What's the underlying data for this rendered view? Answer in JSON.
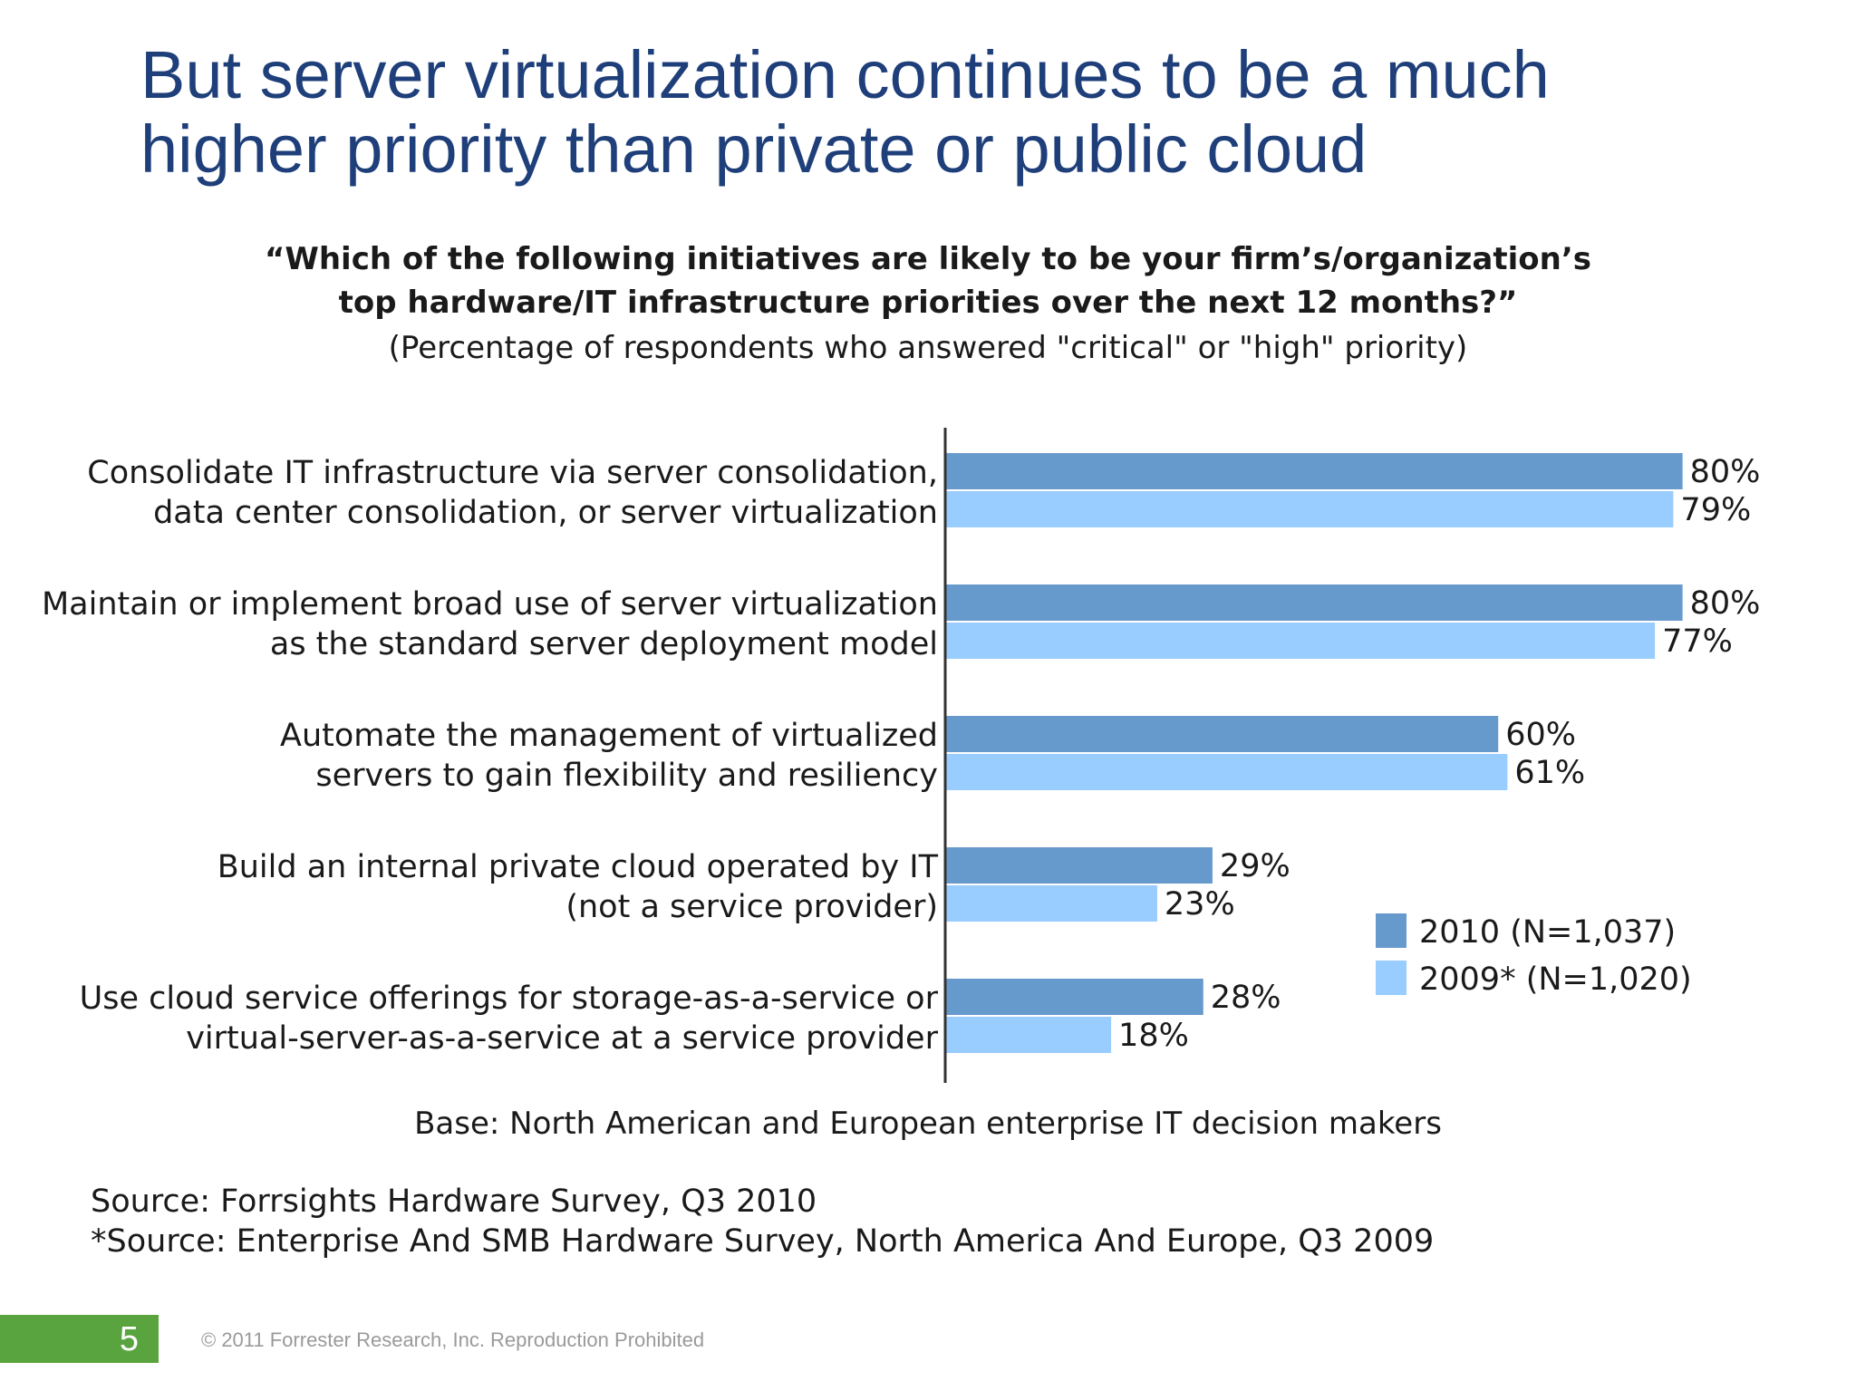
{
  "slide": {
    "title_lines": [
      "But server virtualization continues to be a much",
      "higher priority than private or public cloud"
    ],
    "page_number": "5",
    "copyright": "© 2011 Forrester Research, Inc. Reproduction Prohibited"
  },
  "chart_data": {
    "type": "bar",
    "orientation": "horizontal",
    "title_lines": [
      "“Which of the following initiatives are likely to be your firm’s/organization’s",
      "top hardware/IT infrastructure priorities over the next 12 months?”"
    ],
    "subtitle": "(Percentage of respondents who answered \"critical\" or \"high\" priority)",
    "categories": [
      [
        "Consolidate IT infrastructure via server consolidation,",
        "data center consolidation, or server virtualization"
      ],
      [
        "Maintain or implement broad use of server virtualization",
        "as the standard server deployment model"
      ],
      [
        "Automate the management of virtualized",
        "servers to gain flexibility and resiliency"
      ],
      [
        "Build an internal private cloud operated by IT",
        "(not a service provider)"
      ],
      [
        "Use cloud service offerings for storage-as-a-service or",
        "virtual-server-as-a-service at a service provider"
      ]
    ],
    "series": [
      {
        "name": "2010 (N=1,037)",
        "values": [
          80,
          80,
          60,
          29,
          28
        ],
        "labels": [
          "80%",
          "80%",
          "60%",
          "29%",
          "28%"
        ],
        "color": "#6699cc"
      },
      {
        "name": "2009* (N=1,020)",
        "values": [
          79,
          77,
          61,
          23,
          18
        ],
        "labels": [
          "79%",
          "77%",
          "61%",
          "23%",
          "18%"
        ],
        "color": "#99ccff"
      }
    ],
    "xlim": [
      0,
      100
    ],
    "grid": false,
    "legend_position": "bottom-right",
    "base_note": "Base: North American and European enterprise IT decision makers"
  },
  "sources": [
    "Source: Forrsights Hardware Survey, Q3 2010",
    "*Source: Enterprise And SMB Hardware Survey, North America And Europe, Q3 2009"
  ]
}
